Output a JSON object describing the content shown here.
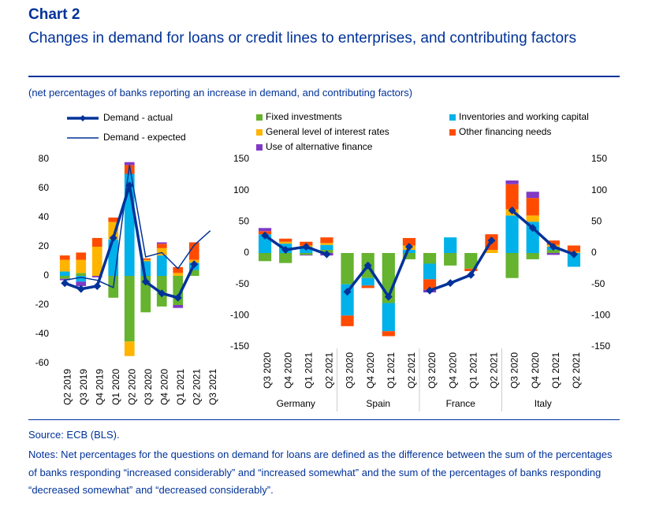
{
  "header": {
    "label": "Chart 2",
    "title": "Changes in demand for loans or credit lines to enterprises, and contributing factors",
    "subtitle": "(net percentages of banks reporting an increase in demand, and contributing factors)"
  },
  "footer": {
    "source": "Source: ECB (BLS).",
    "notes": "Notes: Net percentages for the questions on demand for loans are defined as the difference between the sum of the percentages of banks responding “increased considerably” and “increased somewhat” and the sum of the percentages of banks responding “decreased somewhat” and “decreased considerably”."
  },
  "chart_data": [
    {
      "type": "bar",
      "stacked": true,
      "categories": [
        "Q2 2019",
        "Q3 2019",
        "Q4 2019",
        "Q1 2020",
        "Q2 2020",
        "Q3 2020",
        "Q4 2020",
        "Q1 2021",
        "Q2 2021",
        "Q3 2021"
      ],
      "ylim": [
        -60,
        80
      ],
      "yticks": [
        -60,
        -40,
        -20,
        0,
        20,
        40,
        60,
        80
      ],
      "series": [
        {
          "name": "Fixed investments",
          "type": "bar",
          "color": "#65b32e",
          "values": [
            -2,
            2,
            0,
            -15,
            -45,
            -25,
            -21,
            -20,
            4,
            null
          ]
        },
        {
          "name": "Inventories and working capital",
          "type": "bar",
          "color": "#00b1ea",
          "values": [
            3,
            -4,
            0,
            25,
            70,
            10,
            14,
            0,
            5,
            null
          ]
        },
        {
          "name": "General level of interest rates",
          "type": "bar",
          "color": "#ffb400",
          "values": [
            8,
            9,
            20,
            12,
            -10,
            1,
            5,
            2,
            2,
            null
          ]
        },
        {
          "name": "Other financing needs",
          "type": "bar",
          "color": "#ff4b00",
          "values": [
            3,
            5,
            6,
            3,
            6,
            1,
            3,
            4,
            12,
            null
          ]
        },
        {
          "name": "Use of alternative finance",
          "type": "bar",
          "color": "#8139c6",
          "values": [
            -1,
            -3,
            -1,
            0,
            2,
            0,
            1,
            -2,
            0,
            null
          ]
        },
        {
          "name": "Demand - actual",
          "type": "line",
          "marker": "diamond",
          "color": "#003299",
          "values": [
            -5,
            -9,
            -7,
            26,
            62,
            -4,
            -12,
            -15,
            8,
            null
          ]
        },
        {
          "name": "Demand - expected",
          "type": "line",
          "color": "#003299",
          "values": [
            -3,
            -1,
            -3,
            -8,
            76,
            13,
            16,
            5,
            21,
            31
          ]
        }
      ]
    },
    {
      "type": "bar",
      "stacked": true,
      "ylim": [
        -150,
        150
      ],
      "yticks": [
        -150,
        -100,
        -50,
        0,
        50,
        100,
        150
      ],
      "y2lim": [
        -150,
        150
      ],
      "y2ticks": [
        -150,
        -100,
        -50,
        0,
        50,
        100,
        150
      ],
      "groups": [
        {
          "name": "Germany",
          "categories": [
            "Q3 2020",
            "Q4 2020",
            "Q1 2021",
            "Q2 2021"
          ],
          "series": [
            {
              "values": [
                -13,
                -16,
                -3,
                5
              ]
            },
            {
              "values": [
                30,
                15,
                10,
                8
              ]
            },
            {
              "values": [
                0,
                3,
                2,
                3
              ]
            },
            {
              "values": [
                5,
                5,
                6,
                9
              ]
            },
            {
              "values": [
                5,
                0,
                -1,
                -4
              ]
            },
            {
              "values": [
                28,
                5,
                10,
                -2
              ]
            }
          ]
        },
        {
          "name": "Spain",
          "categories": [
            "Q3 2020",
            "Q4 2020",
            "Q1 2021",
            "Q2 2021"
          ],
          "series": [
            {
              "values": [
                -50,
                -40,
                -80,
                -10
              ]
            },
            {
              "values": [
                -50,
                -12,
                -45,
                5
              ]
            },
            {
              "values": [
                0,
                0,
                0,
                7
              ]
            },
            {
              "values": [
                -17,
                -4,
                -8,
                12
              ]
            },
            {
              "values": [
                0,
                0,
                0,
                0
              ]
            },
            {
              "values": [
                -62,
                -20,
                -70,
                10
              ]
            }
          ]
        },
        {
          "name": "France",
          "categories": [
            "Q3 2020",
            "Q4 2020",
            "Q1 2021",
            "Q2 2021"
          ],
          "series": [
            {
              "values": [
                -17,
                -20,
                -25,
                0
              ]
            },
            {
              "values": [
                -25,
                25,
                0,
                0
              ]
            },
            {
              "values": [
                0,
                0,
                0,
                5
              ]
            },
            {
              "values": [
                -17,
                0,
                -4,
                25
              ]
            },
            {
              "values": [
                -4,
                0,
                0,
                0
              ]
            },
            {
              "values": [
                -60,
                -48,
                -35,
                20
              ]
            }
          ]
        },
        {
          "name": "Italy",
          "categories": [
            "Q3 2020",
            "Q4 2020",
            "Q1 2021",
            "Q2 2021"
          ],
          "series": [
            {
              "values": [
                -40,
                -10,
                5,
                0
              ]
            },
            {
              "values": [
                60,
                50,
                5,
                -22
              ]
            },
            {
              "values": [
                10,
                10,
                3,
                2
              ]
            },
            {
              "values": [
                40,
                28,
                7,
                10
              ]
            },
            {
              "values": [
                6,
                10,
                -3,
                0
              ]
            },
            {
              "values": [
                68,
                40,
                10,
                -2
              ]
            }
          ]
        }
      ]
    }
  ]
}
